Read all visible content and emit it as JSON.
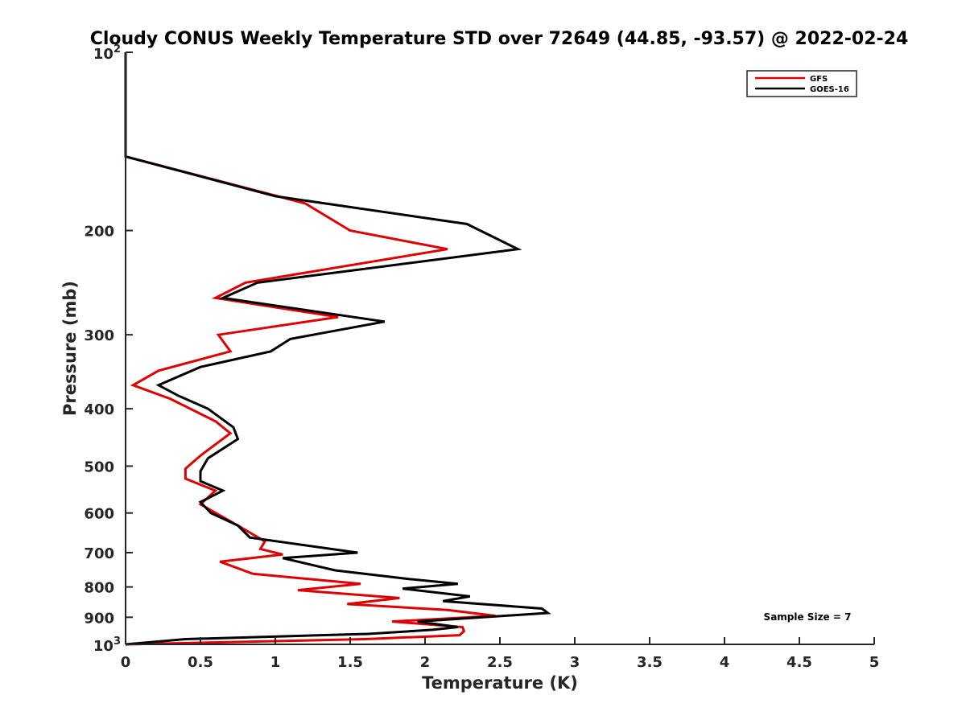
{
  "chart_data": {
    "type": "line",
    "title": "Cloudy CONUS Weekly Temperature STD over 72649 (44.85, -93.57) @ 2022-02-24",
    "xlabel": "Temperature (K)",
    "ylabel": "Pressure (mb)",
    "xlim": [
      0,
      5
    ],
    "ylim": [
      100,
      1000
    ],
    "y_scale": "log",
    "y_reversed": true,
    "grid": false,
    "legend_position": "top-right",
    "x_ticks": [
      "0",
      "0.5",
      "1",
      "1.5",
      "2",
      "2.5",
      "3",
      "3.5",
      "4",
      "4.5",
      "5"
    ],
    "x_tick_values": [
      0,
      0.5,
      1,
      1.5,
      2,
      2.5,
      3,
      3.5,
      4,
      4.5,
      5
    ],
    "y_ticks": [
      {
        "value": 100,
        "base": "10",
        "exp": "2"
      },
      {
        "value": 200,
        "label": "200"
      },
      {
        "value": 300,
        "label": "300"
      },
      {
        "value": 400,
        "label": "400"
      },
      {
        "value": 500,
        "label": "500"
      },
      {
        "value": 600,
        "label": "600"
      },
      {
        "value": 700,
        "label": "700"
      },
      {
        "value": 800,
        "label": "800"
      },
      {
        "value": 900,
        "label": "900"
      },
      {
        "value": 1000,
        "base": "10",
        "exp": "3"
      }
    ],
    "annotation": "Sample Size = 7",
    "series": [
      {
        "name": "GFS",
        "color": "#e00000",
        "points": [
          [
            0,
            100
          ],
          [
            0,
            150
          ],
          [
            1.2,
            180
          ],
          [
            1.5,
            200
          ],
          [
            2.15,
            215
          ],
          [
            0.8,
            245
          ],
          [
            0.6,
            260
          ],
          [
            1.42,
            280
          ],
          [
            0.62,
            300
          ],
          [
            0.7,
            320
          ],
          [
            0.22,
            345
          ],
          [
            0.05,
            365
          ],
          [
            0.3,
            385
          ],
          [
            0.6,
            420
          ],
          [
            0.7,
            440
          ],
          [
            0.5,
            480
          ],
          [
            0.4,
            505
          ],
          [
            0.4,
            525
          ],
          [
            0.6,
            550
          ],
          [
            0.55,
            565
          ],
          [
            0.5,
            580
          ],
          [
            0.75,
            630
          ],
          [
            0.93,
            670
          ],
          [
            0.9,
            690
          ],
          [
            1.05,
            705
          ],
          [
            0.63,
            725
          ],
          [
            0.85,
            760
          ],
          [
            1.57,
            790
          ],
          [
            1.15,
            810
          ],
          [
            1.83,
            835
          ],
          [
            1.48,
            855
          ],
          [
            2.15,
            875
          ],
          [
            2.47,
            895
          ],
          [
            1.78,
            915
          ],
          [
            2.25,
            935
          ],
          [
            2.26,
            950
          ],
          [
            2.23,
            965
          ],
          [
            1.6,
            980
          ],
          [
            0,
            1000
          ]
        ]
      },
      {
        "name": "GOES-16",
        "color": "#000000",
        "points": [
          [
            0,
            100
          ],
          [
            0,
            150
          ],
          [
            1.0,
            175
          ],
          [
            2.28,
            195
          ],
          [
            2.62,
            215
          ],
          [
            0.88,
            245
          ],
          [
            0.65,
            260
          ],
          [
            1.73,
            285
          ],
          [
            1.1,
            305
          ],
          [
            0.97,
            320
          ],
          [
            0.5,
            340
          ],
          [
            0.22,
            365
          ],
          [
            0.35,
            380
          ],
          [
            0.55,
            400
          ],
          [
            0.72,
            430
          ],
          [
            0.75,
            450
          ],
          [
            0.55,
            485
          ],
          [
            0.5,
            510
          ],
          [
            0.5,
            530
          ],
          [
            0.65,
            550
          ],
          [
            0.5,
            575
          ],
          [
            0.57,
            600
          ],
          [
            0.75,
            630
          ],
          [
            0.83,
            660
          ],
          [
            1.55,
            700
          ],
          [
            1.05,
            715
          ],
          [
            1.4,
            750
          ],
          [
            1.88,
            775
          ],
          [
            2.22,
            790
          ],
          [
            1.85,
            805
          ],
          [
            2.3,
            830
          ],
          [
            2.12,
            845
          ],
          [
            2.78,
            870
          ],
          [
            2.82,
            885
          ],
          [
            1.95,
            915
          ],
          [
            2.22,
            935
          ],
          [
            2.05,
            945
          ],
          [
            1.62,
            960
          ],
          [
            0.4,
            980
          ],
          [
            0,
            1000
          ]
        ]
      }
    ]
  }
}
